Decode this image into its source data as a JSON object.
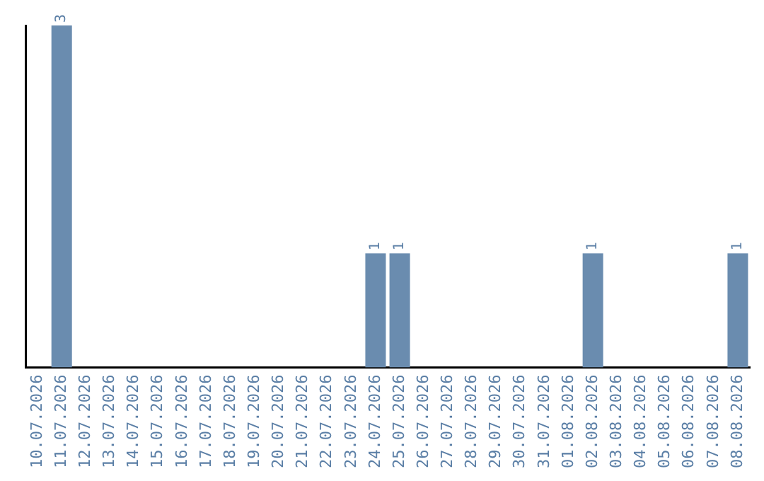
{
  "chart_data": {
    "type": "bar",
    "categories": [
      "10.07.2026",
      "11.07.2026",
      "12.07.2026",
      "13.07.2026",
      "14.07.2026",
      "15.07.2026",
      "16.07.2026",
      "17.07.2026",
      "18.07.2026",
      "19.07.2026",
      "20.07.2026",
      "21.07.2026",
      "22.07.2026",
      "23.07.2026",
      "24.07.2026",
      "25.07.2026",
      "26.07.2026",
      "27.07.2026",
      "28.07.2026",
      "29.07.2026",
      "30.07.2026",
      "31.07.2026",
      "01.08.2026",
      "02.08.2026",
      "03.08.2026",
      "04.08.2026",
      "05.08.2026",
      "06.08.2026",
      "07.08.2026",
      "08.08.2026"
    ],
    "values": [
      0,
      3,
      0,
      0,
      0,
      0,
      0,
      0,
      0,
      0,
      0,
      0,
      0,
      0,
      1,
      1,
      0,
      0,
      0,
      0,
      0,
      0,
      0,
      1,
      0,
      0,
      0,
      0,
      0,
      1
    ],
    "value_labels": [
      null,
      "3",
      null,
      null,
      null,
      null,
      null,
      null,
      null,
      null,
      null,
      null,
      null,
      null,
      "1",
      "1",
      null,
      null,
      null,
      null,
      null,
      null,
      null,
      "1",
      null,
      null,
      null,
      null,
      null,
      "1"
    ],
    "color": "#6a8caf",
    "grid": false,
    "legend": false
  }
}
